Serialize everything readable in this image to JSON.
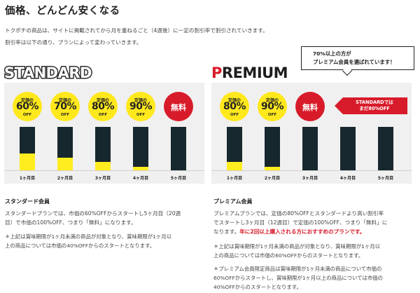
{
  "header": {
    "title": "価格、どんどん安くなる",
    "intro_line1": "トクポチの商品は、サイトに掲載されてから月を重ねるごと（4週後）に一定の割引率で割引されていきます。",
    "intro_line2": "割引率は以下の通り、プランによって変わっていきます。"
  },
  "callout": {
    "line1": "70%以上の方が",
    "line2": "プレミアム会員を選ばれています！"
  },
  "standard": {
    "name": "STANDARD",
    "badges": [
      {
        "pre": "定価の",
        "pct": "60%",
        "off": "OFF"
      },
      {
        "pre": "定価の",
        "pct": "70%",
        "off": "OFF"
      },
      {
        "pre": "定価の",
        "pct": "80%",
        "off": "OFF"
      },
      {
        "pre": "定価の",
        "pct": "90%",
        "off": "OFF"
      },
      {
        "pre": "",
        "pct": "無料",
        "off": ""
      }
    ],
    "months": [
      "1ヶ月目",
      "2ヶ月目",
      "3ヶ月目",
      "4ヶ月目",
      "5ヶ月目"
    ],
    "remaining_fraction": [
      0.4,
      0.3,
      0.2,
      0.1,
      0.0
    ],
    "heading": "スタンダード会員",
    "desc_line1": "スタンダードプランでは、市価の60%OFFからスタートし5ヶ月目（20週",
    "desc_line2": "目）で市価の100%OFF、つまり「無料」になります。",
    "note_line1": "＊上記は賞味期限が1ヶ月未満の商品が対象となり、賞味期限が1ヶ月以",
    "note_line2": "上の商品については市価の40%OFFからのスタートとなります。"
  },
  "premium": {
    "name_first": "P",
    "name_rest": "REMIUM",
    "badges": [
      {
        "pre": "定価の",
        "pct": "80%",
        "off": "OFF"
      },
      {
        "pre": "定価の",
        "pct": "90%",
        "off": "OFF"
      },
      {
        "pre": "",
        "pct": "無料",
        "off": ""
      }
    ],
    "arrow_line1": "STANDARDでは",
    "arrow_line2": "まだ80%OFF",
    "months": [
      "1ヶ月目",
      "2ヶ月目",
      "3ヶ月目",
      "4ヶ月目",
      "5ヶ月目"
    ],
    "remaining_fraction": [
      0.2,
      0.1,
      0.0,
      0.0,
      0.0
    ],
    "heading": "プレミアム会員",
    "desc_line1": "プレミアムプランでは、定価の80%OFFとスタンダードより高い割引率",
    "desc_line2": "でスタートし3ヶ月目（12週目）で定価の100%OFF、つまり「無料」に",
    "desc_line3_plain": "なります。",
    "desc_line3_red": "年に2回以上購入される方におすすめのプランです。",
    "note1_line1": "＊上記は賞味期限が1ヶ月未満の商品が対象となり、賞味期限が1ヶ月以",
    "note1_line2": "上の商品については市価の60%OFFからのスタートとなります。",
    "note2_line1": "＊プレミアム会員限定商品は賞味期限が1ヶ月未満の商品について市価の",
    "note2_line2": "60%OFFからスタートし、賞味期限が1ヶ月以上の商品については市価の",
    "note2_line3": "40%OFFからのスタートとなります。"
  },
  "colors": {
    "accent_red": "#d81b2a",
    "badge_yellow": "#ffe81c",
    "bar_dark": "#17272e",
    "bar_fill": "#ffed1f",
    "panel_bg": "#f0f0f0"
  }
}
